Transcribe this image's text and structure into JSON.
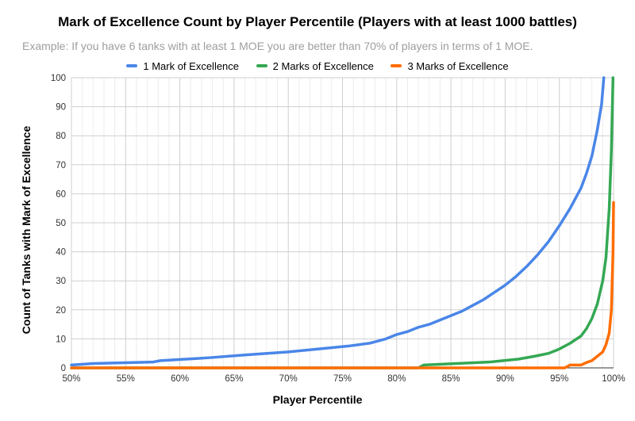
{
  "chart_data": {
    "type": "line",
    "title": "Mark of Excellence Count by Player Percentile (Players with at least 1000 battles)",
    "subtitle": "Example: If you have 6 tanks with at least 1 MOE you are better than 70% of players in terms of 1 MOE.",
    "xlabel": "Player Percentile",
    "ylabel": "Count of Tanks with Mark of Excellence",
    "xlim": [
      50,
      100
    ],
    "ylim": [
      0,
      100
    ],
    "x_ticks": [
      "50%",
      "55%",
      "60%",
      "65%",
      "70%",
      "75%",
      "80%",
      "85%",
      "90%",
      "95%",
      "100%"
    ],
    "y_ticks": [
      "0",
      "10",
      "20",
      "30",
      "40",
      "50",
      "60",
      "70",
      "80",
      "90",
      "100"
    ],
    "grid": true,
    "legend_position": "top",
    "series": [
      {
        "name": "1 Mark of Excellence",
        "color": "#4a86e8",
        "x": [
          50,
          52,
          57.5,
          58.2,
          62.7,
          66.2,
          70,
          72.7,
          75.5,
          77.5,
          79,
          80,
          81,
          82,
          83,
          84,
          85,
          86,
          87,
          88,
          89,
          90,
          91,
          92,
          93,
          94,
          95,
          96,
          97,
          97.5,
          98,
          98.5,
          98.9,
          99.1
        ],
        "y": [
          1,
          1.5,
          2,
          2.5,
          3.5,
          4.5,
          5.5,
          6.5,
          7.5,
          8.5,
          10,
          11.5,
          12.5,
          14,
          15,
          16.5,
          18,
          19.5,
          21.5,
          23.5,
          26,
          28.5,
          31.5,
          35,
          39,
          43.5,
          49,
          55,
          62,
          67,
          73,
          82,
          91,
          100
        ]
      },
      {
        "name": "2 Marks of Excellence",
        "color": "#34a853",
        "x": [
          50,
          82,
          82.5,
          88.5,
          91.2,
          92.7,
          94,
          95,
          96,
          97,
          97.5,
          98,
          98.5,
          99,
          99.3,
          99.6,
          99.8,
          99.95
        ],
        "y": [
          0,
          0,
          1,
          2,
          3,
          4,
          5,
          6.5,
          8.5,
          11,
          13.5,
          17,
          22,
          30,
          38,
          55,
          75,
          100
        ]
      },
      {
        "name": "3 Marks of Excellence",
        "color": "#ff6d01",
        "x": [
          50,
          95.5,
          96,
          97,
          97.6,
          98,
          98.5,
          99,
          99.3,
          99.6,
          99.8,
          99.95,
          100
        ],
        "y": [
          0,
          0,
          1,
          1,
          2,
          2.5,
          4,
          5.5,
          8,
          12,
          20,
          40,
          57
        ]
      }
    ]
  }
}
